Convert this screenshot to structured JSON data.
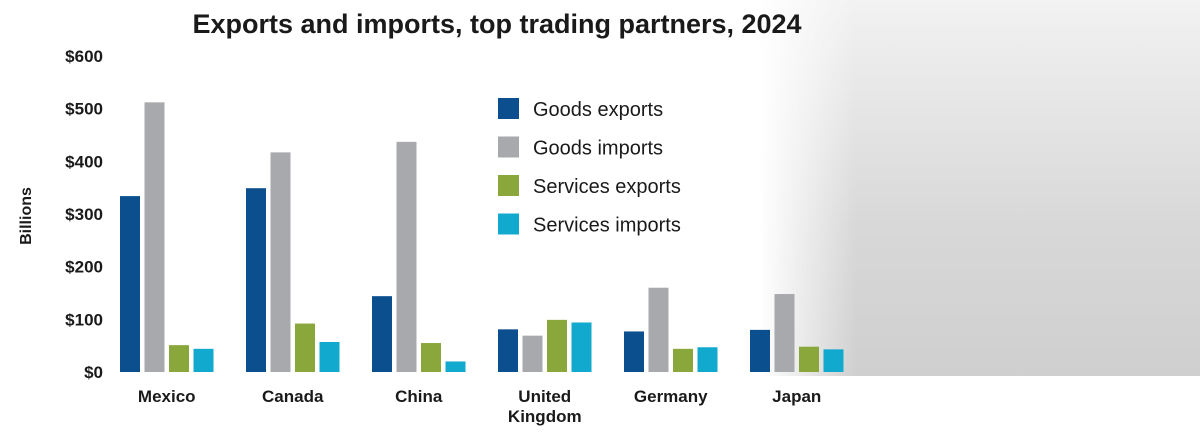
{
  "chart_data": {
    "type": "bar",
    "title": "Exports and imports, top trading partners, 2024",
    "xlabel": "",
    "ylabel": "Billions",
    "ylim": [
      0,
      600
    ],
    "yticks": [
      {
        "value": 0,
        "label": "$0"
      },
      {
        "value": 100,
        "label": "$100"
      },
      {
        "value": 200,
        "label": "$200"
      },
      {
        "value": 300,
        "label": "$300"
      },
      {
        "value": 400,
        "label": "$400"
      },
      {
        "value": 500,
        "label": "$500"
      },
      {
        "value": 600,
        "label": "$600"
      }
    ],
    "categories": [
      [
        "Mexico"
      ],
      [
        "Canada"
      ],
      [
        "China"
      ],
      [
        "United",
        "Kingdom"
      ],
      [
        "Germany"
      ],
      [
        "Japan"
      ]
    ],
    "series": [
      {
        "name": "Goods exports",
        "color": "#0b4f8f",
        "values": [
          334,
          349,
          144,
          81,
          77,
          80
        ]
      },
      {
        "name": "Goods imports",
        "color": "#a7a9ac",
        "values": [
          512,
          417,
          437,
          69,
          160,
          148
        ]
      },
      {
        "name": "Services exports",
        "color": "#8aa73b",
        "values": [
          51,
          92,
          55,
          99,
          44,
          48
        ]
      },
      {
        "name": "Services imports",
        "color": "#12a9cf",
        "values": [
          44,
          57,
          20,
          94,
          47,
          43
        ]
      }
    ],
    "grid": false,
    "legend_position": "top-center"
  }
}
